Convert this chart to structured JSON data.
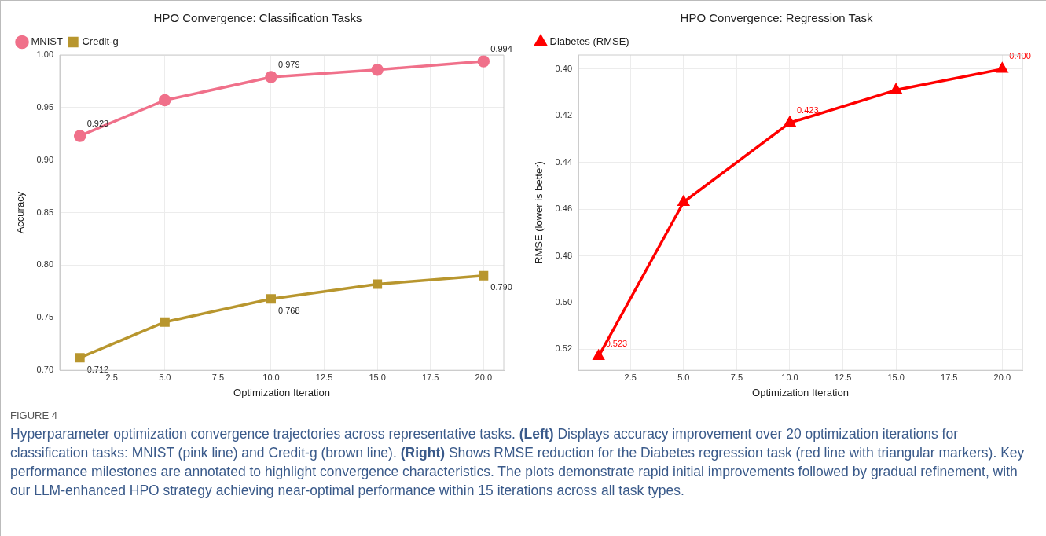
{
  "chart_data": [
    {
      "type": "line",
      "title": "HPO Convergence: Classification Tasks",
      "xlabel": "Optimization Iteration",
      "ylabel": "Accuracy",
      "x": [
        1,
        5,
        10,
        15,
        20
      ],
      "series": [
        {
          "name": "MNIST",
          "color": "#f0708a",
          "marker": "circle",
          "values": [
            0.923,
            0.957,
            0.979,
            0.986,
            0.994
          ],
          "value_labels": [
            "0.923",
            null,
            "0.979",
            null,
            "0.994"
          ]
        },
        {
          "name": "Credit-g",
          "color": "#b8962e",
          "marker": "square",
          "values": [
            0.712,
            0.746,
            0.768,
            0.782,
            0.79
          ],
          "value_labels": [
            "0.712",
            null,
            "0.768",
            null,
            "0.790"
          ]
        }
      ],
      "xlim": [
        0.05,
        20.95
      ],
      "xticks": [
        {
          "value": 2.5,
          "label": "2.5"
        },
        {
          "value": 5,
          "label": "5.0"
        },
        {
          "value": 7.5,
          "label": "7.5"
        },
        {
          "value": 10,
          "label": "10.0"
        },
        {
          "value": 12.5,
          "label": "12.5"
        },
        {
          "value": 15,
          "label": "15.0"
        },
        {
          "value": 17.5,
          "label": "17.5"
        },
        {
          "value": 20,
          "label": "20.0"
        }
      ],
      "ylim": [
        0.7,
        1.0
      ],
      "yticks": [
        {
          "value": 0.7,
          "label": "0.70"
        },
        {
          "value": 0.75,
          "label": "0.75"
        },
        {
          "value": 0.8,
          "label": "0.80"
        },
        {
          "value": 0.85,
          "label": "0.85"
        },
        {
          "value": 0.9,
          "label": "0.90"
        },
        {
          "value": 0.95,
          "label": "0.95"
        },
        {
          "value": 1.0,
          "label": "1.00"
        }
      ],
      "grid": true,
      "legend": "top left",
      "annotations": [
        "FIGURE 4",
        "Hyperparameter optimization convergence trajectories across representative tasks. **(Left)** Displays accuracy improvement over 20 optimization iterations for classification tasks: MNIST (pink line) and Credit-g (brown line). **(Right)** Shows RMSE reduction for the Diabetes regression task (red line with triangular markers). Key performance milestones are annotated to highlight convergence characteristics. The plots demonstrate rapid initial improvements followed by gradual refinement, with our LLM-enhanced HPO strategy achieving near-optimal performance within 15 iterations across all task types."
      ]
    },
    {
      "type": "line",
      "title": "HPO Convergence: Regression Task",
      "xlabel": "Optimization Iteration",
      "ylabel": "RMSE (lower is better)",
      "x": [
        1,
        5,
        10,
        15,
        20
      ],
      "series": [
        {
          "name": "Diabetes (RMSE)",
          "color": "#ff0000",
          "marker": "triangle",
          "values": [
            0.523,
            0.457,
            0.423,
            0.409,
            0.4
          ],
          "value_labels": [
            "0.523",
            null,
            "0.423",
            null,
            "0.400"
          ]
        }
      ],
      "xlim": [
        0.05,
        20.95
      ],
      "xticks": [
        {
          "value": 2.5,
          "label": "2.5"
        },
        {
          "value": 5,
          "label": "5.0"
        },
        {
          "value": 7.5,
          "label": "7.5"
        },
        {
          "value": 10,
          "label": "10.0"
        },
        {
          "value": 12.5,
          "label": "12.5"
        },
        {
          "value": 15,
          "label": "15.0"
        },
        {
          "value": 17.5,
          "label": "17.5"
        },
        {
          "value": 20,
          "label": "20.0"
        }
      ],
      "ylim": [
        0.529,
        0.394
      ],
      "yticks": [
        {
          "value": 0.4,
          "label": "0.40"
        },
        {
          "value": 0.42,
          "label": "0.42"
        },
        {
          "value": 0.44,
          "label": "0.44"
        },
        {
          "value": 0.46,
          "label": "0.46"
        },
        {
          "value": 0.48,
          "label": "0.48"
        },
        {
          "value": 0.5,
          "label": "0.50"
        },
        {
          "value": 0.52,
          "label": "0.52"
        }
      ],
      "grid": true,
      "legend": "top left"
    }
  ]
}
